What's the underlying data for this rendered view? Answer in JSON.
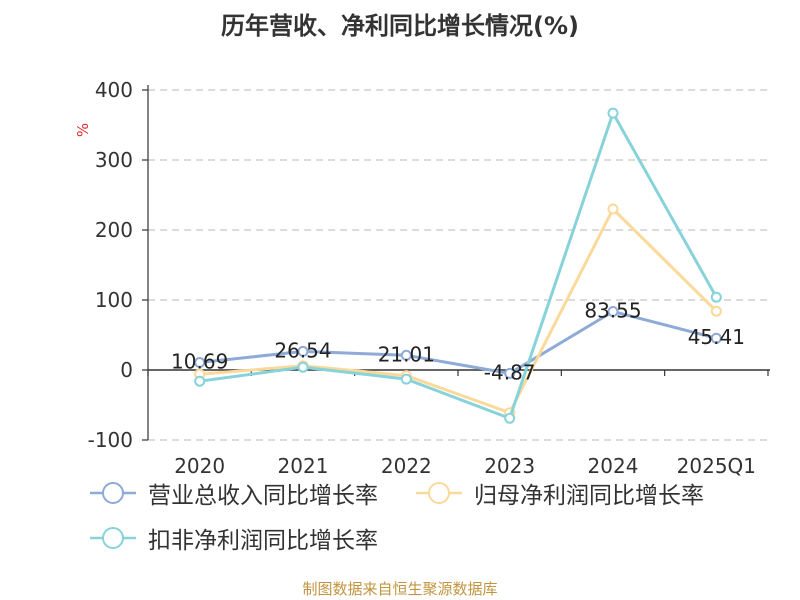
{
  "source_note": "制图数据来自恒生聚源数据库",
  "chart_data": {
    "type": "line",
    "title": "历年营收、净利同比增长情况(%)",
    "xlabel": "",
    "ylabel": "%",
    "ylabel_color": "#e0302c",
    "categories": [
      "2020",
      "2021",
      "2022",
      "2023",
      "2024",
      "2025Q1"
    ],
    "y_ticks": [
      400,
      300,
      200,
      100,
      0,
      -100
    ],
    "ylim": [
      -100,
      400
    ],
    "grid": true,
    "legend_position": "bottom",
    "series": [
      {
        "name": "营业总收入同比增长率",
        "color": "#8eaad6",
        "values": [
          10.69,
          26.54,
          21.01,
          -4.87,
          83.55,
          45.41
        ],
        "show_labels": true
      },
      {
        "name": "归母净利润同比增长率",
        "color": "#fbd99a",
        "values": [
          -6,
          6,
          -8,
          -61,
          230,
          84
        ],
        "show_labels": false
      },
      {
        "name": "扣非净利润同比增长率",
        "color": "#87d3d9",
        "values": [
          -16,
          4,
          -13,
          -69,
          367,
          104
        ],
        "show_labels": false
      }
    ]
  }
}
